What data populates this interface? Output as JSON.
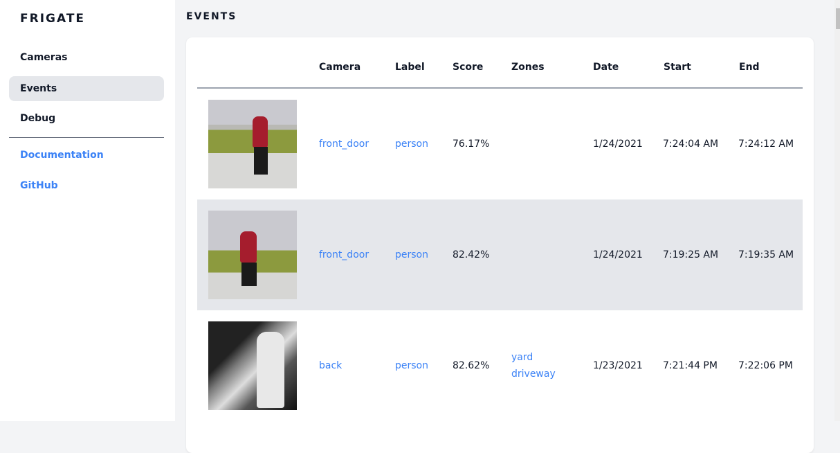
{
  "sidebar": {
    "brand": "FRIGATE",
    "items": [
      {
        "label": "Cameras"
      },
      {
        "label": "Events",
        "active": true
      },
      {
        "label": "Debug"
      }
    ],
    "links": [
      {
        "label": "Documentation"
      },
      {
        "label": "GitHub"
      }
    ]
  },
  "page": {
    "title": "EVENTS"
  },
  "table": {
    "headers": [
      "Camera",
      "Label",
      "Score",
      "Zones",
      "Date",
      "Start",
      "End"
    ],
    "rows": [
      {
        "camera": "front_door",
        "label": "person",
        "score": "76.17%",
        "zones": [
          "",
          ""
        ],
        "date": "1/24/2021",
        "start": "7:24:04 AM",
        "end": "7:24:12 AM"
      },
      {
        "camera": "front_door",
        "label": "person",
        "score": "82.42%",
        "zones": [
          "",
          ""
        ],
        "date": "1/24/2021",
        "start": "7:19:25 AM",
        "end": "7:19:35 AM"
      },
      {
        "camera": "back",
        "label": "person",
        "score": "82.62%",
        "zones": [
          "yard",
          "driveway"
        ],
        "date": "1/23/2021",
        "start": "7:21:44 PM",
        "end": "7:22:06 PM"
      }
    ]
  },
  "colors": {
    "link": "#3b82f6",
    "active_bg": "#e5e7eb"
  }
}
